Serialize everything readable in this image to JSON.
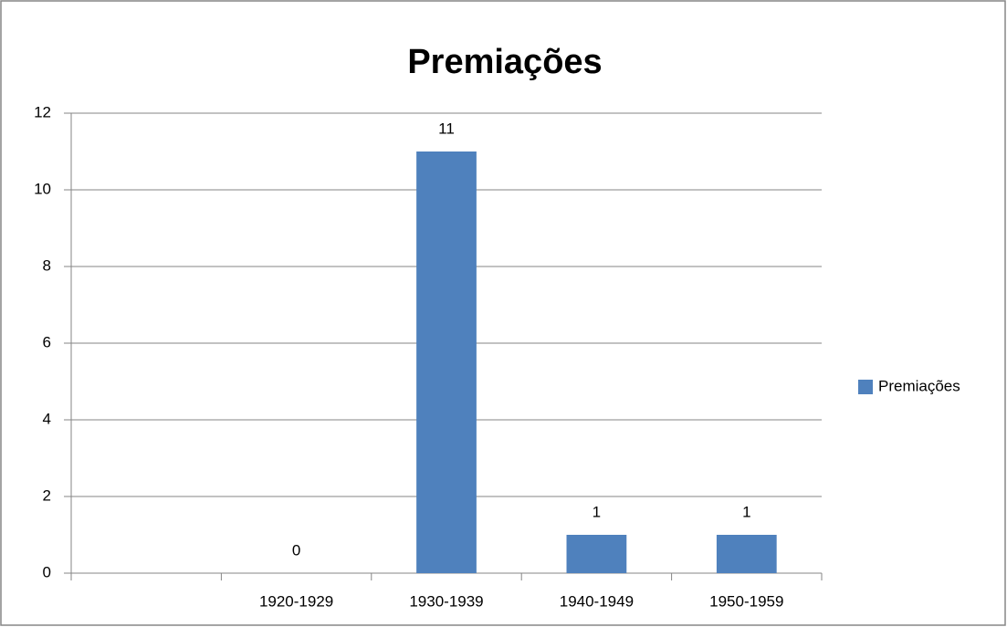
{
  "chart_data": {
    "type": "bar",
    "title": "Premiações",
    "categories": [
      null,
      "1920-1929",
      "1930-1939",
      "1940-1949",
      "1950-1959"
    ],
    "series": [
      {
        "name": "Premiações",
        "color": "#4f81bd",
        "values": [
          null,
          0,
          11,
          1,
          1
        ]
      }
    ],
    "ylim": [
      0,
      12
    ],
    "yticks": [
      0,
      2,
      4,
      6,
      8,
      10,
      12
    ],
    "grid": true,
    "legend": "right",
    "data_labels": true
  }
}
